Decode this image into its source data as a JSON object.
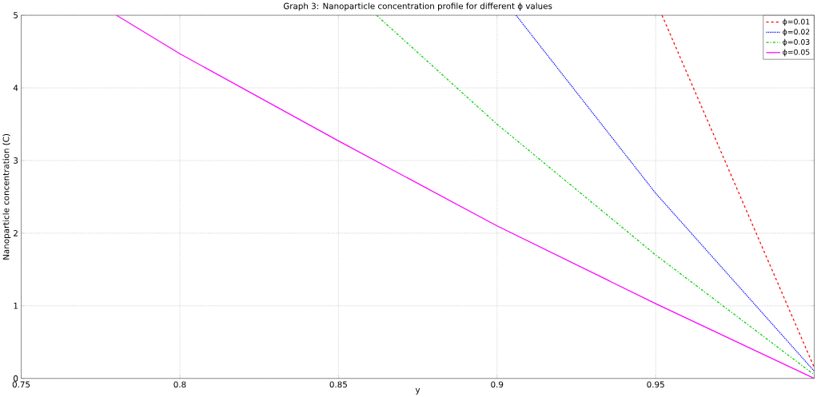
{
  "chart_data": {
    "type": "line",
    "title": "Graph 3: Nanoparticle concentration profile for different ϕ values",
    "xlabel": "y",
    "ylabel": "Nanoparticle concentration (C)",
    "xlim": [
      0.75,
      1
    ],
    "xticks": [
      0.75,
      0.8,
      0.85,
      0.9,
      0.95,
      {
        "value": 1,
        "label": null
      }
    ],
    "ylim": [
      0,
      5
    ],
    "yticks": [
      0,
      1,
      2,
      3,
      4,
      5
    ],
    "grid": true,
    "legend": "top right",
    "marker": "none",
    "series": [
      {
        "name": "ϕ=0.01",
        "color": "#ff0000",
        "line_style": "dashed",
        "x": [
          0.952,
          1.0
        ],
        "values": [
          5,
          0.15
        ]
      },
      {
        "name": "ϕ=0.02",
        "color": "#0000ff",
        "line_style": "dotted",
        "x": [
          0.906,
          0.95,
          1.0
        ],
        "values": [
          5,
          2.55,
          0.1
        ]
      },
      {
        "name": "ϕ=0.03",
        "color": "#00cc00",
        "line_style": "dashdot",
        "x": [
          0.862,
          0.9,
          0.95,
          1.0
        ],
        "values": [
          5,
          3.5,
          1.7,
          0.05
        ]
      },
      {
        "name": "ϕ=0.05",
        "color": "#ff00ff",
        "line_style": "solid",
        "x": [
          0.78,
          0.8,
          0.85,
          0.9,
          0.95,
          1.0
        ],
        "values": [
          5,
          4.47,
          3.27,
          2.1,
          1.03,
          0
        ]
      }
    ]
  }
}
